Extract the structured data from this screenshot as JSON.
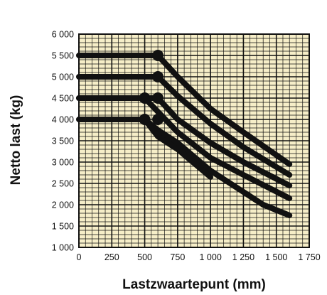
{
  "chart_data": {
    "type": "line",
    "title": "",
    "xlabel": "Lastzwaartepunt (mm)",
    "ylabel": "Netto last (kg)",
    "xlim": [
      0,
      1750
    ],
    "ylim": [
      1000,
      6000
    ],
    "x_ticks": [
      0,
      250,
      500,
      750,
      1000,
      1250,
      1500,
      1750
    ],
    "x_tick_labels": [
      "0",
      "250",
      "500",
      "750",
      "1 000",
      "1 250",
      "1 500",
      "1 750"
    ],
    "y_ticks": [
      1000,
      1500,
      2000,
      2500,
      3000,
      3500,
      4000,
      4500,
      5000,
      5500,
      6000
    ],
    "y_tick_labels": [
      "1 000",
      "1 500",
      "2 000",
      "2 500",
      "3 000",
      "3 500",
      "4 000",
      "4 500",
      "5 000",
      "5 500",
      "6 000"
    ],
    "grid": true,
    "minor_grid_step": {
      "x": 50,
      "y": 100
    },
    "colors": {
      "background": "#f6eec8",
      "grid": "#111111",
      "line": "#111111"
    },
    "series": [
      {
        "values": [
          [
            0,
            5500
          ],
          [
            600,
            5500
          ],
          [
            750,
            5000
          ],
          [
            1000,
            4250
          ],
          [
            1250,
            3700
          ],
          [
            1600,
            2950
          ]
        ]
      },
      {
        "values": [
          [
            0,
            5000
          ],
          [
            600,
            5000
          ],
          [
            750,
            4550
          ],
          [
            1000,
            3900
          ],
          [
            1250,
            3350
          ],
          [
            1600,
            2700
          ]
        ]
      },
      {
        "values": [
          [
            0,
            4500
          ],
          [
            600,
            4500
          ],
          [
            750,
            4000
          ],
          [
            1000,
            3450
          ],
          [
            1250,
            3000
          ],
          [
            1600,
            2450
          ]
        ]
      },
      {
        "values": [
          [
            0,
            4500
          ],
          [
            500,
            4500
          ],
          [
            750,
            3700
          ],
          [
            1000,
            3100
          ],
          [
            1250,
            2700
          ],
          [
            1600,
            2150
          ]
        ]
      },
      {
        "values": [
          [
            0,
            4000
          ],
          [
            500,
            4000
          ],
          [
            600,
            3750
          ],
          [
            750,
            3450
          ],
          [
            1000,
            2800
          ],
          [
            1250,
            2300
          ],
          [
            1400,
            2000
          ],
          [
            1600,
            1750
          ]
        ]
      },
      {
        "values": [
          [
            500,
            4000
          ],
          [
            600,
            3600
          ],
          [
            750,
            3300
          ],
          [
            1000,
            2650
          ]
        ]
      }
    ],
    "markers": [
      [
        600,
        5500
      ],
      [
        600,
        5000
      ],
      [
        600,
        4500
      ],
      [
        500,
        4500
      ],
      [
        500,
        4000
      ],
      [
        600,
        4000
      ]
    ]
  }
}
